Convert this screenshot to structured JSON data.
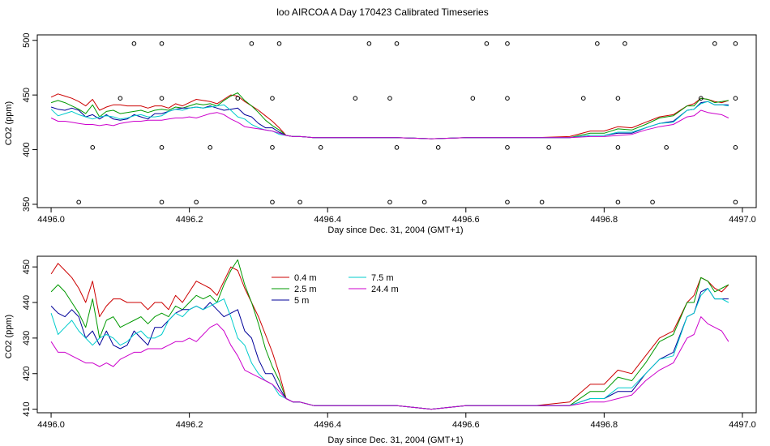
{
  "figure": {
    "title": "loo AIRCOA A  Day 170423  Calibrated Timeseries"
  },
  "chart_data": [
    {
      "type": "line",
      "xlabel": "Day since Dec. 31, 2004 (GMT+1)",
      "ylabel": "CO2 (ppm)",
      "xlim": [
        4495.98,
        4497.02
      ],
      "ylim": [
        347,
        505
      ],
      "xticks": [
        4496.0,
        4496.2,
        4496.4,
        4496.6,
        4496.8,
        4497.0
      ],
      "xtick_labels": [
        "4496.0",
        "4496.2",
        "4496.4",
        "4496.6",
        "4496.8",
        "4497.0"
      ],
      "yticks": [
        350,
        400,
        450,
        500
      ],
      "ytick_labels": [
        "350",
        "400",
        "450",
        "500"
      ],
      "x": [
        4496.0,
        4496.01,
        4496.02,
        4496.03,
        4496.04,
        4496.05,
        4496.06,
        4496.07,
        4496.08,
        4496.09,
        4496.1,
        4496.11,
        4496.12,
        4496.13,
        4496.14,
        4496.15,
        4496.16,
        4496.17,
        4496.18,
        4496.19,
        4496.2,
        4496.21,
        4496.22,
        4496.23,
        4496.24,
        4496.25,
        4496.26,
        4496.27,
        4496.28,
        4496.29,
        4496.3,
        4496.31,
        4496.32,
        4496.33,
        4496.34,
        4496.35,
        4496.36,
        4496.38,
        4496.4,
        4496.45,
        4496.5,
        4496.55,
        4496.6,
        4496.65,
        4496.7,
        4496.75,
        4496.78,
        4496.8,
        4496.82,
        4496.84,
        4496.86,
        4496.88,
        4496.9,
        4496.92,
        4496.93,
        4496.94,
        4496.95,
        4496.96,
        4496.97,
        4496.98
      ],
      "series": [
        {
          "name": "0.4 m",
          "color": "#cc0000",
          "values": [
            448,
            451,
            449,
            447,
            444,
            440,
            446,
            436,
            439,
            441,
            441,
            440,
            440,
            440,
            438,
            440,
            440,
            438,
            442,
            440,
            443,
            446,
            445,
            444,
            442,
            446,
            450,
            449,
            444,
            440,
            436,
            431,
            426,
            420,
            413,
            412,
            412,
            411,
            411,
            411,
            411,
            410,
            411,
            411,
            411,
            412,
            417,
            417,
            421,
            420,
            425,
            430,
            432,
            440,
            442,
            447,
            446,
            444,
            443,
            445
          ]
        },
        {
          "name": "2.5 m",
          "color": "#009900",
          "values": [
            443,
            445,
            443,
            440,
            437,
            433,
            441,
            430,
            435,
            436,
            433,
            434,
            435,
            436,
            434,
            436,
            437,
            436,
            439,
            438,
            440,
            442,
            441,
            442,
            440,
            445,
            449,
            452,
            445,
            440,
            434,
            427,
            422,
            418,
            413,
            412,
            412,
            411,
            411,
            411,
            411,
            410,
            411,
            411,
            411,
            411,
            415,
            415,
            419,
            418,
            423,
            429,
            431,
            440,
            440,
            447,
            446,
            443,
            444,
            445
          ]
        },
        {
          "name": "5 m",
          "color": "#000099",
          "values": [
            439,
            437,
            436,
            438,
            436,
            430,
            432,
            428,
            432,
            428,
            427,
            428,
            432,
            430,
            428,
            433,
            433,
            435,
            437,
            438,
            438,
            439,
            438,
            440,
            438,
            436,
            437,
            438,
            432,
            430,
            424,
            420,
            420,
            416,
            413,
            412,
            412,
            411,
            411,
            411,
            411,
            410,
            411,
            411,
            411,
            411,
            413,
            413,
            415,
            415,
            420,
            424,
            426,
            436,
            437,
            443,
            444,
            441,
            441,
            441
          ]
        },
        {
          "name": "7.5 m",
          "color": "#00cccc",
          "values": [
            437,
            431,
            433,
            435,
            432,
            430,
            428,
            430,
            431,
            430,
            428,
            429,
            431,
            432,
            430,
            430,
            431,
            435,
            437,
            436,
            438,
            439,
            438,
            439,
            440,
            441,
            436,
            430,
            428,
            423,
            420,
            418,
            417,
            414,
            413,
            412,
            412,
            411,
            411,
            411,
            411,
            410,
            411,
            411,
            411,
            411,
            413,
            413,
            416,
            416,
            420,
            424,
            425,
            436,
            437,
            442,
            444,
            441,
            441,
            440
          ]
        },
        {
          "name": "24.4 m",
          "color": "#cc00cc",
          "values": [
            429,
            426,
            426,
            425,
            424,
            423,
            423,
            422,
            423,
            422,
            424,
            425,
            426,
            426,
            427,
            427,
            427,
            428,
            429,
            429,
            430,
            429,
            431,
            433,
            434,
            432,
            428,
            425,
            421,
            420,
            419,
            418,
            417,
            415,
            413,
            412,
            412,
            411,
            411,
            411,
            411,
            410,
            411,
            411,
            411,
            411,
            412,
            412,
            413,
            414,
            418,
            421,
            423,
            430,
            431,
            436,
            434,
            433,
            432,
            429
          ]
        }
      ],
      "scatter": {
        "x": [
          4496.04,
          4496.06,
          4496.1,
          4496.12,
          4496.16,
          4496.16,
          4496.16,
          4496.16,
          4496.21,
          4496.23,
          4496.27,
          4496.29,
          4496.32,
          4496.32,
          4496.32,
          4496.33,
          4496.36,
          4496.39,
          4496.44,
          4496.46,
          4496.49,
          4496.5,
          4496.49,
          4496.5,
          4496.54,
          4496.56,
          4496.61,
          4496.63,
          4496.66,
          4496.66,
          4496.66,
          4496.66,
          4496.71,
          4496.72,
          4496.77,
          4496.79,
          4496.82,
          4496.82,
          4496.82,
          4496.83,
          4496.87,
          4496.89,
          4496.94,
          4496.96,
          4496.99,
          4496.99,
          4496.99,
          4496.99
        ],
        "y": [
          352,
          402,
          447,
          497,
          352,
          402,
          447,
          497,
          352,
          402,
          447,
          497,
          352,
          402,
          447,
          497,
          352,
          402,
          447,
          497,
          352,
          402,
          447,
          497,
          352,
          402,
          447,
          497,
          352,
          402,
          447,
          497,
          352,
          402,
          447,
          497,
          352,
          402,
          447,
          497,
          352,
          402,
          447,
          497,
          352,
          402,
          447,
          497
        ]
      }
    },
    {
      "type": "line",
      "xlabel": "Day since Dec. 31, 2004 (GMT+1)",
      "ylabel": "CO2 (ppm)",
      "xlim": [
        4495.98,
        4497.02
      ],
      "ylim": [
        409,
        453
      ],
      "xticks": [
        4496.0,
        4496.2,
        4496.4,
        4496.6,
        4496.8,
        4497.0
      ],
      "xtick_labels": [
        "4496.0",
        "4496.2",
        "4496.4",
        "4496.6",
        "4496.8",
        "4497.0"
      ],
      "yticks": [
        410,
        420,
        430,
        440,
        450
      ],
      "ytick_labels": [
        "410",
        "420",
        "430",
        "440",
        "450"
      ],
      "legend_placement": "top-left",
      "x": [
        4496.0,
        4496.01,
        4496.02,
        4496.03,
        4496.04,
        4496.05,
        4496.06,
        4496.07,
        4496.08,
        4496.09,
        4496.1,
        4496.11,
        4496.12,
        4496.13,
        4496.14,
        4496.15,
        4496.16,
        4496.17,
        4496.18,
        4496.19,
        4496.2,
        4496.21,
        4496.22,
        4496.23,
        4496.24,
        4496.25,
        4496.26,
        4496.27,
        4496.28,
        4496.29,
        4496.3,
        4496.31,
        4496.32,
        4496.33,
        4496.34,
        4496.35,
        4496.36,
        4496.38,
        4496.4,
        4496.45,
        4496.5,
        4496.55,
        4496.6,
        4496.65,
        4496.7,
        4496.75,
        4496.78,
        4496.8,
        4496.82,
        4496.84,
        4496.86,
        4496.88,
        4496.9,
        4496.92,
        4496.93,
        4496.94,
        4496.95,
        4496.96,
        4496.97,
        4496.98
      ],
      "series": [
        {
          "name": "0.4 m",
          "color": "#cc0000",
          "values": [
            448,
            451,
            449,
            447,
            444,
            440,
            446,
            436,
            439,
            441,
            441,
            440,
            440,
            440,
            438,
            440,
            440,
            438,
            442,
            440,
            443,
            446,
            445,
            444,
            442,
            446,
            450,
            449,
            444,
            440,
            436,
            431,
            426,
            420,
            413,
            412,
            412,
            411,
            411,
            411,
            411,
            410,
            411,
            411,
            411,
            412,
            417,
            417,
            421,
            420,
            425,
            430,
            432,
            440,
            442,
            447,
            446,
            444,
            443,
            445
          ]
        },
        {
          "name": "2.5 m",
          "color": "#009900",
          "values": [
            443,
            445,
            443,
            440,
            437,
            433,
            441,
            430,
            435,
            436,
            433,
            434,
            435,
            436,
            434,
            436,
            437,
            436,
            439,
            438,
            440,
            442,
            441,
            442,
            440,
            445,
            449,
            452,
            445,
            440,
            434,
            427,
            422,
            418,
            413,
            412,
            412,
            411,
            411,
            411,
            411,
            410,
            411,
            411,
            411,
            411,
            415,
            415,
            419,
            418,
            423,
            429,
            431,
            440,
            440,
            447,
            446,
            443,
            444,
            445
          ]
        },
        {
          "name": "5 m",
          "color": "#000099",
          "values": [
            439,
            437,
            436,
            438,
            436,
            430,
            432,
            428,
            432,
            428,
            427,
            428,
            432,
            430,
            428,
            433,
            433,
            435,
            437,
            438,
            438,
            439,
            438,
            440,
            438,
            436,
            437,
            438,
            432,
            430,
            424,
            420,
            420,
            416,
            413,
            412,
            412,
            411,
            411,
            411,
            411,
            410,
            411,
            411,
            411,
            411,
            413,
            413,
            415,
            415,
            420,
            424,
            426,
            436,
            437,
            443,
            444,
            441,
            441,
            441
          ]
        },
        {
          "name": "7.5 m",
          "color": "#00cccc",
          "values": [
            437,
            431,
            433,
            435,
            432,
            430,
            428,
            430,
            431,
            430,
            428,
            429,
            431,
            432,
            430,
            430,
            431,
            435,
            437,
            436,
            438,
            439,
            438,
            439,
            440,
            441,
            436,
            430,
            428,
            423,
            420,
            418,
            417,
            414,
            413,
            412,
            412,
            411,
            411,
            411,
            411,
            410,
            411,
            411,
            411,
            411,
            413,
            413,
            416,
            416,
            420,
            424,
            425,
            436,
            437,
            442,
            444,
            441,
            441,
            440
          ]
        },
        {
          "name": "24.4 m",
          "color": "#cc00cc",
          "values": [
            429,
            426,
            426,
            425,
            424,
            423,
            423,
            422,
            423,
            422,
            424,
            425,
            426,
            426,
            427,
            427,
            427,
            428,
            429,
            429,
            430,
            429,
            431,
            433,
            434,
            432,
            428,
            425,
            421,
            420,
            419,
            418,
            417,
            415,
            413,
            412,
            412,
            411,
            411,
            411,
            411,
            410,
            411,
            411,
            411,
            411,
            412,
            412,
            413,
            414,
            418,
            421,
            423,
            430,
            431,
            436,
            434,
            433,
            432,
            429
          ]
        }
      ]
    }
  ]
}
